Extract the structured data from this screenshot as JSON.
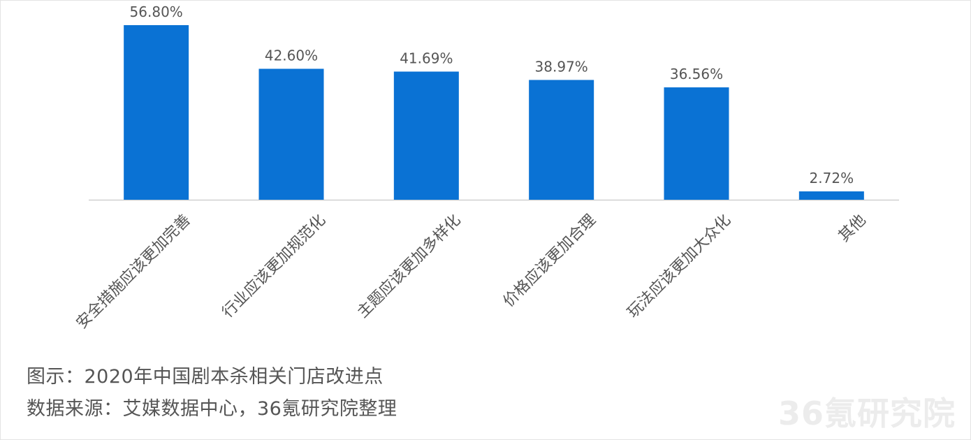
{
  "chart_data": {
    "type": "bar",
    "categories": [
      "安全措施应该更加完善",
      "行业应该更加规范化",
      "主题应该更加多样化",
      "价格应该更加合理",
      "玩法应该更加大众化",
      "其他"
    ],
    "values": [
      56.8,
      42.6,
      41.69,
      38.97,
      36.56,
      2.72
    ],
    "value_labels": [
      "56.80%",
      "42.60%",
      "41.69%",
      "38.97%",
      "36.56%",
      "2.72%"
    ],
    "ylim": [
      0,
      56.8
    ],
    "bar_color": "#0a72d4",
    "axis_color": "#d0d0d0",
    "label_color": "#555555",
    "grid": false
  },
  "caption": {
    "title": "图示：2020年中国剧本杀相关门店改进点",
    "source": "数据来源：艾媒数据中心，36氪研究院整理"
  },
  "watermark": "36氪研究院"
}
